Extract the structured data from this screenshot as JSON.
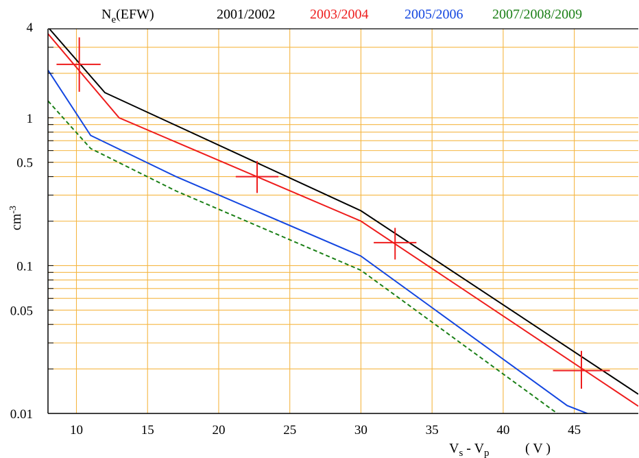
{
  "chart_data": {
    "type": "line",
    "title": "",
    "xlabel": {
      "main": "V",
      "sub1": "s",
      "mid": " - V",
      "sub2": "p",
      "unit": "( V )"
    },
    "ylabel": {
      "main": "cm",
      "sup": "-3"
    },
    "xlim": [
      8,
      49.5
    ],
    "ylim": [
      0.01,
      4
    ],
    "yscale": "log",
    "grid": true,
    "legend_position": "top",
    "x_ticks": [
      10,
      15,
      20,
      25,
      30,
      35,
      40,
      45
    ],
    "y_ticks": [
      {
        "value": 4,
        "label": "4"
      },
      {
        "value": 1,
        "label": "1"
      },
      {
        "value": 0.5,
        "label": "0.5"
      },
      {
        "value": 0.1,
        "label": "0.1"
      },
      {
        "value": 0.05,
        "label": "0.05"
      },
      {
        "value": 0.01,
        "label": "0.01"
      }
    ],
    "legend_label": {
      "main": "N",
      "sub": "e",
      "rest": "(EFW)"
    },
    "series": [
      {
        "name": "2001/2002",
        "color": "#000000",
        "dash": "solid",
        "points": [
          [
            8.0,
            4.1
          ],
          [
            12.0,
            1.48
          ],
          [
            30.0,
            0.235
          ],
          [
            49.5,
            0.0135
          ]
        ]
      },
      {
        "name": "2003/2004",
        "color": "#ee1c1c",
        "dash": "solid",
        "points": [
          [
            8.0,
            3.7
          ],
          [
            13.0,
            1.0
          ],
          [
            30.0,
            0.2
          ],
          [
            49.5,
            0.0112
          ]
        ]
      },
      {
        "name": "2005/2006",
        "color": "#1346e0",
        "dash": "solid",
        "points": [
          [
            8.0,
            2.1
          ],
          [
            11.0,
            0.76
          ],
          [
            17.0,
            0.4
          ],
          [
            30.0,
            0.116
          ],
          [
            44.5,
            0.0113
          ],
          [
            46.5,
            0.0095
          ]
        ]
      },
      {
        "name": "2007/2008/2009",
        "color": "#1a7f16",
        "dash": "dashed",
        "points": [
          [
            8.0,
            1.3
          ],
          [
            11.0,
            0.62
          ],
          [
            17.0,
            0.32
          ],
          [
            30.0,
            0.093
          ],
          [
            43.5,
            0.0105
          ],
          [
            45.0,
            0.0083
          ]
        ]
      }
    ],
    "markers": [
      {
        "color": "#ee1c1c",
        "x": 10.2,
        "y": 2.3,
        "xerr": [
          8.6,
          11.7
        ],
        "yerr": [
          1.5,
          3.5
        ]
      },
      {
        "color": "#ee1c1c",
        "x": 22.7,
        "y": 0.4,
        "xerr": [
          21.2,
          24.2
        ],
        "yerr": [
          0.31,
          0.51
        ]
      },
      {
        "color": "#ee1c1c",
        "x": 32.4,
        "y": 0.143,
        "xerr": [
          30.9,
          33.9
        ],
        "yerr": [
          0.11,
          0.18
        ]
      },
      {
        "color": "#ee1c1c",
        "x": 45.5,
        "y": 0.0195,
        "xerr": [
          43.5,
          47.5
        ],
        "yerr": [
          0.0147,
          0.0265
        ]
      }
    ]
  }
}
